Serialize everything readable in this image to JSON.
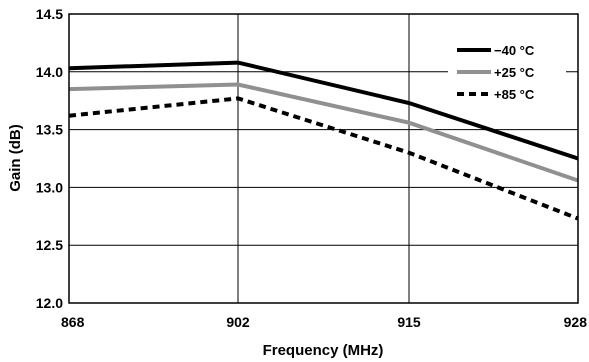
{
  "chart_data": {
    "type": "line",
    "xlabel": "Frequency (MHz)",
    "ylabel": "Gain (dB)",
    "categories": [
      "868",
      "902",
      "915",
      "928"
    ],
    "ylim": [
      12.0,
      14.5
    ],
    "y_ticks": [
      "12.0",
      "12.5",
      "13.0",
      "13.5",
      "14.0",
      "14.5"
    ],
    "grid": true,
    "legend_position": "top-right",
    "series": [
      {
        "name": "−40 °C",
        "values": [
          14.03,
          14.08,
          13.73,
          13.25
        ],
        "color": "#000000",
        "style": "solid"
      },
      {
        "name": "+25 °C",
        "values": [
          13.85,
          13.89,
          13.56,
          13.06
        ],
        "color": "#909090",
        "style": "solid"
      },
      {
        "name": "+85 °C",
        "values": [
          13.62,
          13.77,
          13.3,
          12.73
        ],
        "color": "#000000",
        "style": "dashed"
      }
    ]
  }
}
